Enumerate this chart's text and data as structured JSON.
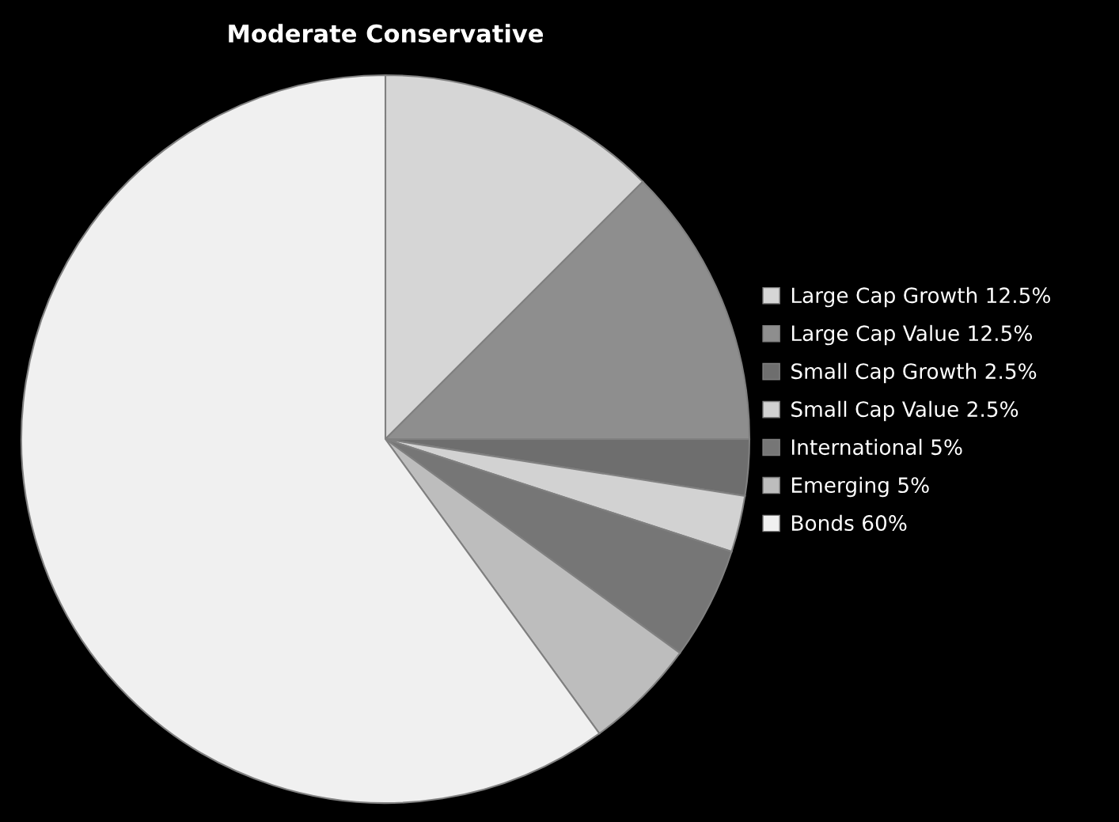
{
  "chart_data": {
    "type": "pie",
    "title": "Moderate Conservative",
    "categories": [
      "Large Cap Growth 12.5%",
      "Large Cap Value 12.5%",
      "Small Cap Growth 2.5%",
      "Small Cap Value 2.5%",
      "International 5%",
      "Emerging 5%",
      "Bonds 60%"
    ],
    "values": [
      12.5,
      12.5,
      2.5,
      2.5,
      5,
      5,
      60
    ],
    "colors": [
      "#d6d6d6",
      "#8e8e8e",
      "#6e6e6e",
      "#d2d2d2",
      "#767676",
      "#bdbdbd",
      "#f0f0f0"
    ],
    "legend": "right"
  }
}
